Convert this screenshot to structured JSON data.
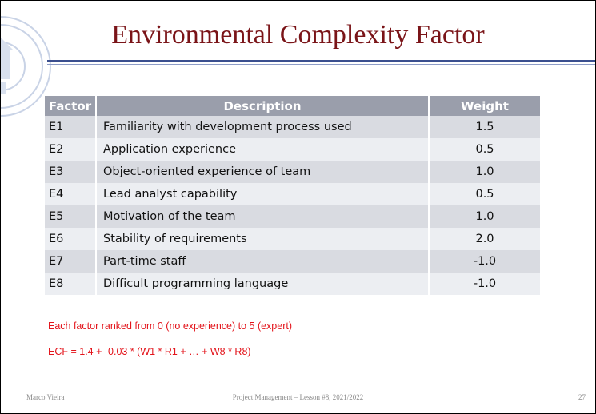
{
  "slide": {
    "title": "Environmental Complexity Factor"
  },
  "table": {
    "headers": [
      "Factor",
      "Description",
      "Weight"
    ],
    "rows": [
      {
        "factor": "E1",
        "description": "Familiarity with development process used",
        "weight": "1.5"
      },
      {
        "factor": "E2",
        "description": "Application experience",
        "weight": "0.5"
      },
      {
        "factor": "E3",
        "description": "Object-oriented experience of team",
        "weight": "1.0"
      },
      {
        "factor": "E4",
        "description": "Lead analyst capability",
        "weight": "0.5"
      },
      {
        "factor": "E5",
        "description": "Motivation of the team",
        "weight": "1.0"
      },
      {
        "factor": "E6",
        "description": "Stability of requirements",
        "weight": "2.0"
      },
      {
        "factor": "E7",
        "description": "Part-time staff",
        "weight": "-1.0"
      },
      {
        "factor": "E8",
        "description": "Difficult programming language",
        "weight": "-1.0"
      }
    ]
  },
  "notes": {
    "ranking": "Each factor ranked from 0 (no experience) to 5 (expert)",
    "formula": "ECF = 1.4 + -0.03 * (W1 * R1 + … + W8 * R8)"
  },
  "footer": {
    "author": "Marco Vieira",
    "course": "Project Management – Lesson #8, 2021/2022",
    "page": "27"
  },
  "colors": {
    "title": "#7a1418",
    "header_bg": "#9a9eab",
    "row_odd": "#d9dbe1",
    "row_even": "#eceef2",
    "note": "#e3141b",
    "rule": "#3b4f8f"
  },
  "icons": {
    "watermark": "university-seal-icon"
  }
}
